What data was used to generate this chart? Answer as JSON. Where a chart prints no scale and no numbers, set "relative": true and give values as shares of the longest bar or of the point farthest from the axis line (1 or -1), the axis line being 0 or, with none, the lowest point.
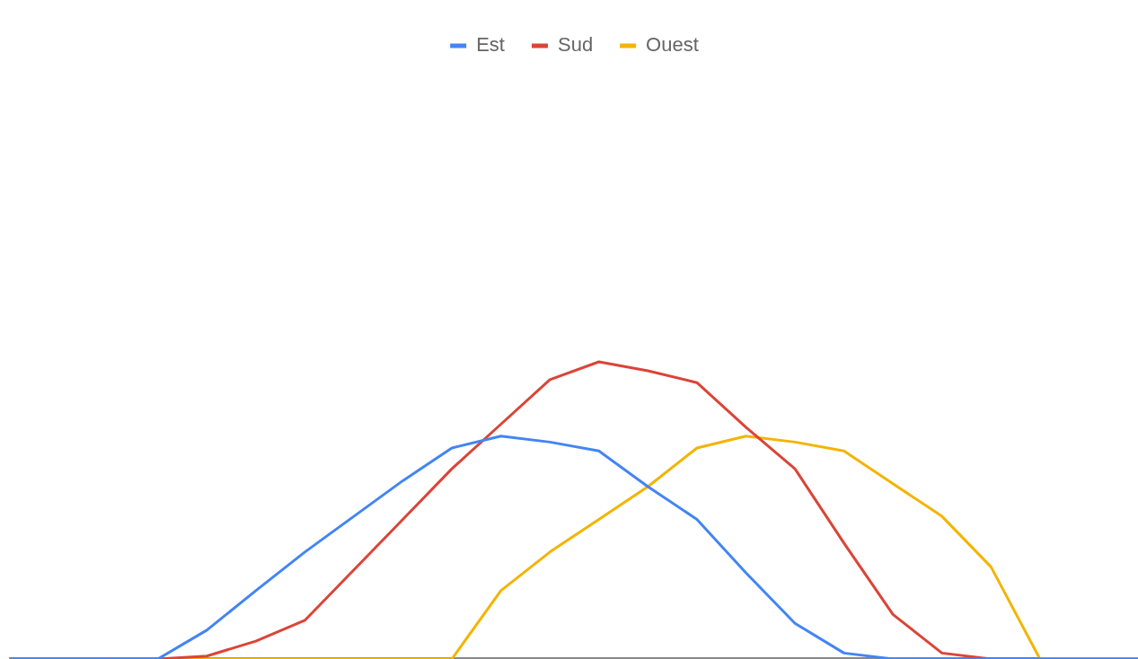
{
  "chart_data": {
    "type": "line",
    "relative": true,
    "legend": "top",
    "marker": "none",
    "line_style": "solid",
    "categories": [
      null,
      null,
      null,
      null,
      null,
      null,
      null,
      null,
      null,
      null,
      null,
      null,
      null,
      null,
      null,
      null,
      null,
      null,
      null,
      null,
      null,
      null,
      null,
      null
    ],
    "series": [
      {
        "name": "Est",
        "color": "#4285f4",
        "values": [
          0,
          0,
          0,
          0,
          0.097,
          0.23,
          0.36,
          0.48,
          0.6,
          0.71,
          0.75,
          0.73,
          0.7,
          0.58,
          0.47,
          0.29,
          0.12,
          0.02,
          0,
          0,
          0,
          0,
          0,
          0
        ]
      },
      {
        "name": "Sud",
        "color": "#db4437",
        "values": [
          null,
          null,
          0,
          0,
          0.01,
          0.06,
          0.13,
          0.3,
          0.47,
          0.64,
          0.79,
          0.94,
          1,
          0.97,
          0.93,
          0.78,
          0.64,
          0.39,
          0.15,
          0.02,
          0,
          0,
          null,
          null
        ]
      },
      {
        "name": "Ouest",
        "color": "#f4b400",
        "values": [
          null,
          null,
          0,
          0,
          0,
          0,
          0,
          0,
          0,
          0,
          0.23,
          0.36,
          0.47,
          0.58,
          0.71,
          0.75,
          0.73,
          0.7,
          0.59,
          0.48,
          0.31,
          0,
          0,
          0
        ]
      }
    ]
  }
}
